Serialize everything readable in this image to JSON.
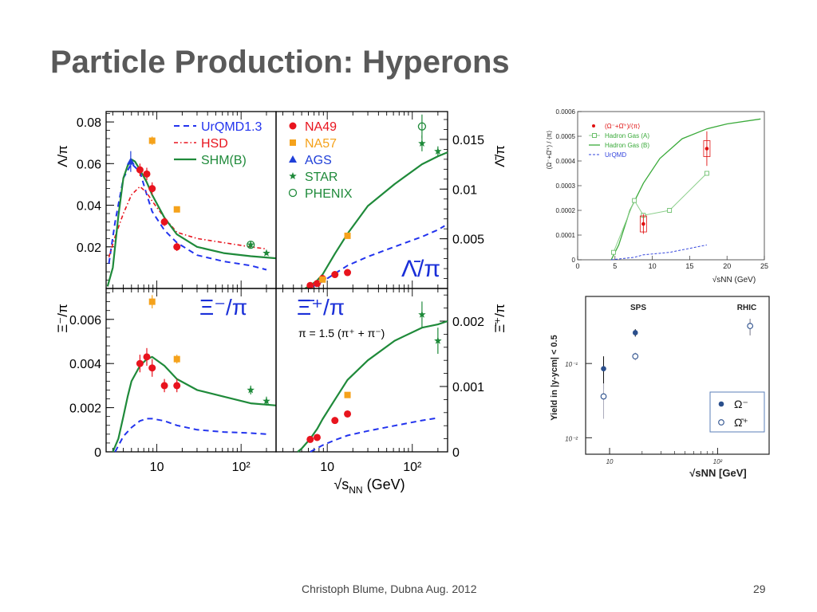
{
  "slide": {
    "title": "Particle Production: Hyperons",
    "footer": "Christoph Blume, Dubna Aug. 2012",
    "page_number": "29"
  },
  "colors": {
    "na49": "#e8141e",
    "na57": "#f5a21b",
    "ags": "#1f3fd8",
    "star": "#1f8a3a",
    "phenix": "#1f8a3a",
    "urqmd": "#2233ee",
    "hsd": "#e8141e",
    "shm": "#1f8a3a",
    "rhic_points": "#2b4f8c"
  },
  "chart_data": [
    {
      "type": "line",
      "panel": "lambda-pi",
      "ylabel": "Λ/π",
      "y_ticks": [
        "0.02",
        "0.04",
        "0.06",
        "0.08"
      ],
      "y_tick_values": [
        0.02,
        0.04,
        0.06,
        0.08
      ],
      "ylim": [
        0,
        0.085
      ],
      "xlim": [
        2.5,
        260
      ],
      "xscale": "log",
      "grid": false,
      "legend_position": "top-right",
      "legend": {
        "lines": [
          {
            "name": "UrQMD1.3",
            "style": "dashed",
            "color": "#2233ee"
          },
          {
            "name": "HSD",
            "style": "dash-dot",
            "color": "#e8141e"
          },
          {
            "name": "SHM(B)",
            "style": "solid",
            "color": "#1f8a3a"
          }
        ],
        "markers": [
          {
            "name": "NA49",
            "marker": "circle",
            "color": "#e8141e"
          },
          {
            "name": "NA57",
            "marker": "square",
            "color": "#f5a21b"
          },
          {
            "name": "AGS",
            "marker": "triangle",
            "color": "#1f3fd8"
          },
          {
            "name": "STAR",
            "marker": "star",
            "color": "#1f8a3a"
          },
          {
            "name": "PHENIX",
            "marker": "open-circle",
            "color": "#1f8a3a"
          }
        ]
      },
      "series": [
        {
          "name": "UrQMD1.3",
          "x": [
            2.7,
            3.2,
            4.0,
            5.0,
            6.3,
            7.6,
            8.8,
            12.3,
            17.3,
            30,
            62,
            130,
            200
          ],
          "y": [
            0.012,
            0.032,
            0.053,
            0.06,
            0.056,
            0.045,
            0.037,
            0.028,
            0.022,
            0.016,
            0.013,
            0.011,
            0.009
          ]
        },
        {
          "name": "HSD",
          "x": [
            2.7,
            3.2,
            4.0,
            5.0,
            6.3,
            7.6,
            8.8,
            12.3,
            17.3,
            30,
            62,
            130,
            200
          ],
          "y": [
            0.015,
            0.025,
            0.036,
            0.045,
            0.049,
            0.046,
            0.042,
            0.034,
            0.027,
            0.024,
            0.022,
            0.02,
            0.019
          ]
        },
        {
          "name": "SHM(B)",
          "x": [
            2.6,
            3.0,
            3.5,
            4.0,
            4.5,
            5.0,
            5.5,
            6.3,
            7.6,
            8.8,
            12.3,
            17.3,
            30,
            62,
            130,
            260
          ],
          "y": [
            0.001,
            0.01,
            0.035,
            0.053,
            0.059,
            0.062,
            0.061,
            0.057,
            0.051,
            0.045,
            0.034,
            0.026,
            0.02,
            0.017,
            0.0155,
            0.0145
          ]
        },
        {
          "name": "NA49",
          "x": [
            6.3,
            7.6,
            8.8,
            12.3,
            17.3
          ],
          "y": [
            0.057,
            0.055,
            0.048,
            0.032,
            0.02
          ],
          "err": [
            0.003,
            0.003,
            0.003,
            0.002,
            0.002
          ]
        },
        {
          "name": "NA57",
          "x": [
            8.8,
            17.3
          ],
          "y": [
            0.071,
            0.038
          ],
          "err": [
            0.002,
            0.001
          ]
        },
        {
          "name": "AGS",
          "x": [
            4.9
          ],
          "y": [
            0.061
          ],
          "err": [
            0.005
          ]
        },
        {
          "name": "STAR",
          "x": [
            130,
            200
          ],
          "y": [
            0.021,
            0.017
          ],
          "err": [
            0.001,
            0.001
          ]
        },
        {
          "name": "PHENIX",
          "x": [
            130
          ],
          "y": [
            0.021
          ],
          "err": [
            0.0015
          ]
        }
      ]
    },
    {
      "type": "line",
      "panel": "antilambda-pi",
      "ylabel": "Λ̄/π",
      "y_ticks": [
        "0.005",
        "0.01",
        "0.015"
      ],
      "y_tick_values": [
        0.005,
        0.01,
        0.015
      ],
      "ylim": [
        0,
        0.0178
      ],
      "xlim": [
        2.5,
        260
      ],
      "xscale": "log",
      "grid": false,
      "annotation": "Λ̄/π",
      "series": [
        {
          "name": "SHM(B)",
          "x": [
            5.5,
            6.3,
            7.6,
            8.8,
            12.3,
            17.3,
            30,
            62,
            130,
            200,
            260
          ],
          "y": [
            0.0,
            0.0003,
            0.0008,
            0.0014,
            0.0035,
            0.0055,
            0.0083,
            0.0105,
            0.0125,
            0.0133,
            0.0137
          ]
        },
        {
          "name": "UrQMD1.3",
          "x": [
            6.3,
            7.6,
            8.8,
            12.3,
            17.3,
            30,
            62,
            130,
            200,
            240
          ],
          "y": [
            0.0001,
            0.0004,
            0.0007,
            0.0015,
            0.0023,
            0.0032,
            0.0042,
            0.0052,
            0.0059,
            0.0063
          ]
        },
        {
          "name": "NA49",
          "x": [
            6.3,
            7.6,
            8.8,
            12.3,
            17.3
          ],
          "y": [
            0.0003,
            0.0005,
            0.001,
            0.0014,
            0.0016
          ],
          "err": [
            0.0001,
            0.0001,
            0.0001,
            0.0001,
            0.0001
          ]
        },
        {
          "name": "NA57",
          "x": [
            8.8,
            17.3
          ],
          "y": [
            0.0009,
            0.0053
          ],
          "err": [
            0.0001,
            0.0002
          ]
        },
        {
          "name": "STAR",
          "x": [
            130,
            200
          ],
          "y": [
            0.0146,
            0.0138
          ],
          "err": [
            0.0008,
            0.0005
          ]
        },
        {
          "name": "PHENIX",
          "x": [
            130
          ],
          "y": [
            0.0163
          ],
          "err": [
            0.0012
          ]
        }
      ]
    },
    {
      "type": "line",
      "panel": "xi-pi",
      "ylabel": "Ξ⁻/π",
      "y_ticks": [
        "0",
        "0.002",
        "0.004",
        "0.006"
      ],
      "y_tick_values": [
        0,
        0.002,
        0.004,
        0.006
      ],
      "x_ticks": [
        "10",
        "10²"
      ],
      "x_tick_values": [
        10,
        100
      ],
      "ylim": [
        0,
        0.0074
      ],
      "xlim": [
        2.5,
        260
      ],
      "xscale": "log",
      "grid": false,
      "annotation": "Ξ⁻/π",
      "series": [
        {
          "name": "SHM(B)",
          "x": [
            3.0,
            3.5,
            4.0,
            4.5,
            5.0,
            6.3,
            7.6,
            8.8,
            12.3,
            17.3,
            30,
            62,
            130,
            260
          ],
          "y": [
            0.0,
            0.0006,
            0.0016,
            0.0025,
            0.0032,
            0.0039,
            0.0042,
            0.0043,
            0.0039,
            0.0033,
            0.0028,
            0.0025,
            0.0022,
            0.0021
          ]
        },
        {
          "name": "UrQMD1.3",
          "x": [
            3.2,
            4.0,
            5.0,
            6.3,
            7.6,
            8.8,
            12.3,
            17.3,
            30,
            62,
            130,
            200
          ],
          "y": [
            0.0,
            0.0007,
            0.0011,
            0.0014,
            0.0015,
            0.0015,
            0.0014,
            0.0012,
            0.001,
            0.0009,
            0.00085,
            0.0008
          ]
        },
        {
          "name": "NA49",
          "x": [
            6.3,
            7.6,
            8.8,
            12.3,
            17.3
          ],
          "y": [
            0.004,
            0.0043,
            0.0038,
            0.003,
            0.003
          ],
          "err": [
            0.0004,
            0.0004,
            0.0004,
            0.0003,
            0.0003
          ]
        },
        {
          "name": "NA57",
          "x": [
            8.8,
            17.3
          ],
          "y": [
            0.0068,
            0.0042
          ],
          "err": [
            0.0003,
            0.0002
          ]
        },
        {
          "name": "STAR",
          "x": [
            130,
            200
          ],
          "y": [
            0.0028,
            0.0023
          ],
          "err": [
            0.0002,
            0.0002
          ]
        }
      ]
    },
    {
      "type": "line",
      "panel": "antixi-pi",
      "ylabel": "Ξ̄⁺/π",
      "y_ticks": [
        "0",
        "0.001",
        "0.002"
      ],
      "y_tick_values": [
        0,
        0.001,
        0.002
      ],
      "x_ticks": [
        "10",
        "10²"
      ],
      "x_tick_values": [
        10,
        100
      ],
      "xlabel": "√sNN (GeV)",
      "ylim": [
        0,
        0.0025
      ],
      "xlim": [
        2.5,
        260
      ],
      "xscale": "log",
      "grid": false,
      "annotation": "Ξ̄⁺/π",
      "note": "π = 1.5 (π⁺ + π⁻)",
      "series": [
        {
          "name": "SHM(B)",
          "x": [
            4.5,
            5.0,
            6.3,
            7.6,
            8.8,
            12.3,
            17.3,
            30,
            62,
            130,
            200,
            260
          ],
          "y": [
            0.0,
            5e-05,
            0.0002,
            0.00035,
            0.0005,
            0.0008,
            0.0011,
            0.0014,
            0.0017,
            0.0019,
            0.00195,
            0.002
          ]
        },
        {
          "name": "UrQMD1.3",
          "x": [
            6.3,
            8.8,
            12.3,
            17.3,
            30,
            62,
            130,
            200
          ],
          "y": [
            0.0,
            0.0001,
            0.00018,
            0.00025,
            0.00032,
            0.0004,
            0.00048,
            0.00052
          ]
        },
        {
          "name": "NA49",
          "x": [
            6.3,
            7.6,
            12.3,
            17.3
          ],
          "y": [
            0.00019,
            0.00022,
            0.00048,
            0.00058
          ],
          "err": [
            3e-05,
            3e-05,
            4e-05,
            4e-05
          ]
        },
        {
          "name": "NA57",
          "x": [
            17.3
          ],
          "y": [
            0.00087
          ],
          "err": [
            4e-05
          ]
        },
        {
          "name": "STAR",
          "x": [
            130,
            200
          ],
          "y": [
            0.0021,
            0.0017
          ],
          "err": [
            0.0002,
            0.0002
          ]
        }
      ]
    },
    {
      "type": "line",
      "panel": "omega-pi",
      "ylabel": "(Ω⁻+Ω̄⁺) / ⟨π⟩",
      "xlabel": "√sNN (GeV)",
      "y_ticks": [
        "0",
        "0.0001",
        "0.0002",
        "0.0003",
        "0.0004",
        "0.0005",
        "0.0006"
      ],
      "y_tick_values": [
        0,
        0.0001,
        0.0002,
        0.0003,
        0.0004,
        0.0005,
        0.0006
      ],
      "x_ticks": [
        "0",
        "5",
        "10",
        "15",
        "20",
        "25"
      ],
      "x_tick_values": [
        0,
        5,
        10,
        15,
        20,
        25
      ],
      "xlim": [
        0,
        25
      ],
      "ylim": [
        0,
        0.0006
      ],
      "xscale": "linear",
      "grid": false,
      "legend_position": "top-left",
      "legend": [
        "(Ω⁻+Ω̄⁺)/⟨π⟩",
        "Hadron Gas (A)",
        "Hadron Gas (B)",
        "UrQMD"
      ],
      "series": [
        {
          "name": "(Ω⁻+Ω̄⁺)/⟨π⟩",
          "x": [
            8.8,
            17.3
          ],
          "y": [
            0.000145,
            0.00045
          ],
          "err": [
            4e-05,
            7e-05
          ]
        },
        {
          "name": "Hadron Gas (A)",
          "x": [
            4.8,
            7.6,
            8.8,
            12.3,
            17.3
          ],
          "y": [
            3e-05,
            0.00024,
            0.00018,
            0.0002,
            0.00035
          ]
        },
        {
          "name": "Hadron Gas (B)",
          "x": [
            4.5,
            5.5,
            7.0,
            8.8,
            11,
            14,
            17.3,
            20,
            24.5
          ],
          "y": [
            0.0,
            6e-05,
            0.0002,
            0.00031,
            0.00041,
            0.00049,
            0.00053,
            0.00055,
            0.00057
          ]
        },
        {
          "name": "UrQMD",
          "x": [
            4.5,
            7.6,
            8.8,
            12.3,
            17.3
          ],
          "y": [
            0.0,
            1e-05,
            2e-05,
            3e-05,
            6e-05
          ]
        }
      ]
    },
    {
      "type": "scatter",
      "panel": "omega-yield",
      "ylabel": "Yield in |y-ycm| < 0.5",
      "xlabel": "√sNN [GeV]",
      "y_ticks": [
        "10⁻²",
        "10⁻¹"
      ],
      "y_tick_values": [
        0.01,
        0.1
      ],
      "x_ticks": [
        "10",
        "10²"
      ],
      "x_tick_values": [
        10,
        100
      ],
      "yscale": "log",
      "xscale": "log",
      "xlim": [
        6,
        300
      ],
      "ylim": [
        0.006,
        0.8
      ],
      "grid": false,
      "legend_position": "bottom-right",
      "annotations": [
        "SPS",
        "RHIC"
      ],
      "legend": [
        "Ω⁻",
        "Ω̄⁺"
      ],
      "series": [
        {
          "name": "Ω⁻",
          "x": [
            8.8,
            17.3,
            200
          ],
          "y": [
            0.085,
            0.26,
            0.32
          ],
          "err": [
            0.04,
            0.03,
            0.08
          ]
        },
        {
          "name": "Ω̄⁺",
          "x": [
            8.8,
            17.3,
            200
          ],
          "y": [
            0.036,
            0.125,
            0.32
          ],
          "err": [
            0.018,
            0.015,
            0.08
          ]
        }
      ]
    }
  ]
}
